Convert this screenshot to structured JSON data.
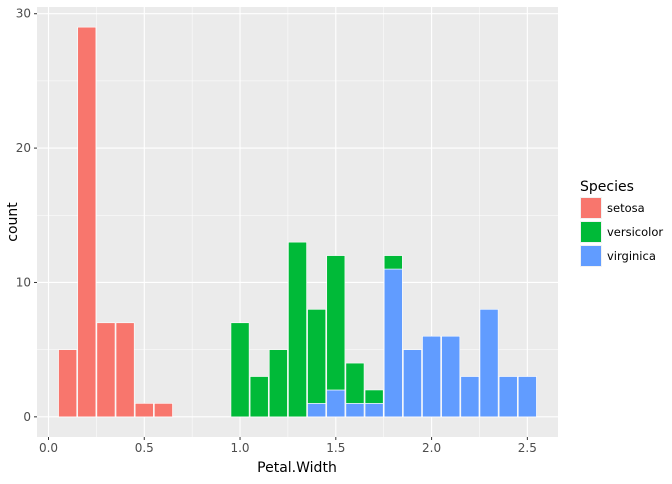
{
  "chart_data": {
    "type": "bar",
    "stacked": true,
    "xlabel": "Petal.Width",
    "ylabel": "count",
    "xlim": [
      -0.06,
      2.66
    ],
    "ylim": [
      -1.5,
      30.5
    ],
    "x_ticks": [
      "0.0",
      "0.5",
      "1.0",
      "1.5",
      "2.0",
      "2.5"
    ],
    "y_ticks": [
      "0",
      "10",
      "20",
      "30"
    ],
    "grid": true,
    "bin_width": 0.1,
    "x": [
      0.1,
      0.2,
      0.3,
      0.4,
      0.5,
      0.6,
      1.0,
      1.1,
      1.2,
      1.3,
      1.4,
      1.5,
      1.6,
      1.7,
      1.8,
      1.9,
      2.0,
      2.1,
      2.2,
      2.3,
      2.4,
      2.5
    ],
    "series": [
      {
        "name": "setosa",
        "color": "#F8766D",
        "values": [
          5,
          29,
          7,
          7,
          1,
          1,
          0,
          0,
          0,
          0,
          0,
          0,
          0,
          0,
          0,
          0,
          0,
          0,
          0,
          0,
          0,
          0
        ]
      },
      {
        "name": "versicolor",
        "color": "#00BA38",
        "values": [
          0,
          0,
          0,
          0,
          0,
          0,
          7,
          3,
          5,
          13,
          7,
          10,
          3,
          1,
          1,
          0,
          0,
          0,
          0,
          0,
          0,
          0
        ]
      },
      {
        "name": "virginica",
        "color": "#619CFF",
        "values": [
          0,
          0,
          0,
          0,
          0,
          0,
          0,
          0,
          0,
          0,
          1,
          2,
          1,
          1,
          11,
          5,
          6,
          6,
          3,
          8,
          3,
          3
        ]
      }
    ],
    "legend": {
      "title": "Species",
      "position": "right"
    }
  }
}
